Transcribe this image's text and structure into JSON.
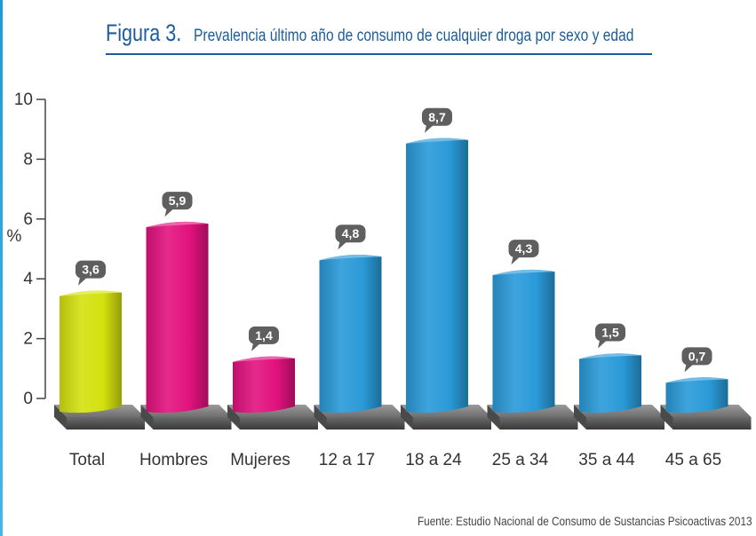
{
  "title": {
    "figure": "Figura 3.",
    "text": "Prevalencia último año de consumo de cualquier droga por sexo y edad"
  },
  "source": "Fuente: Estudio Nacional de Consumo de Sustancias Psicoactivas 2013",
  "colors": {
    "total": "#d4e10e",
    "sexo": "#e2127e",
    "edad": "#2a9ad8",
    "title": "#1c5c9c",
    "base": "#555555"
  },
  "chart_data": {
    "type": "bar",
    "title": "Prevalencia último año de consumo de cualquier droga por sexo y edad",
    "xlabel": "",
    "ylabel": "%",
    "ylim": [
      0,
      10
    ],
    "yticks": [
      "0",
      "2",
      "4",
      "6",
      "8",
      "10"
    ],
    "grid": false,
    "categories": [
      "Total",
      "Hombres",
      "Mujeres",
      "12 a 17",
      "18 a 24",
      "25 a 34",
      "35 a 44",
      "45 a 65"
    ],
    "values": [
      3.6,
      5.9,
      1.4,
      4.8,
      8.7,
      4.3,
      1.5,
      0.7
    ],
    "value_labels": [
      "3,6",
      "5,9",
      "1,4",
      "4,8",
      "8,7",
      "4,3",
      "1,5",
      "0,7"
    ],
    "bar_colors": [
      "#d4e10e",
      "#e2127e",
      "#e2127e",
      "#2a9ad8",
      "#2a9ad8",
      "#2a9ad8",
      "#2a9ad8",
      "#2a9ad8"
    ]
  }
}
